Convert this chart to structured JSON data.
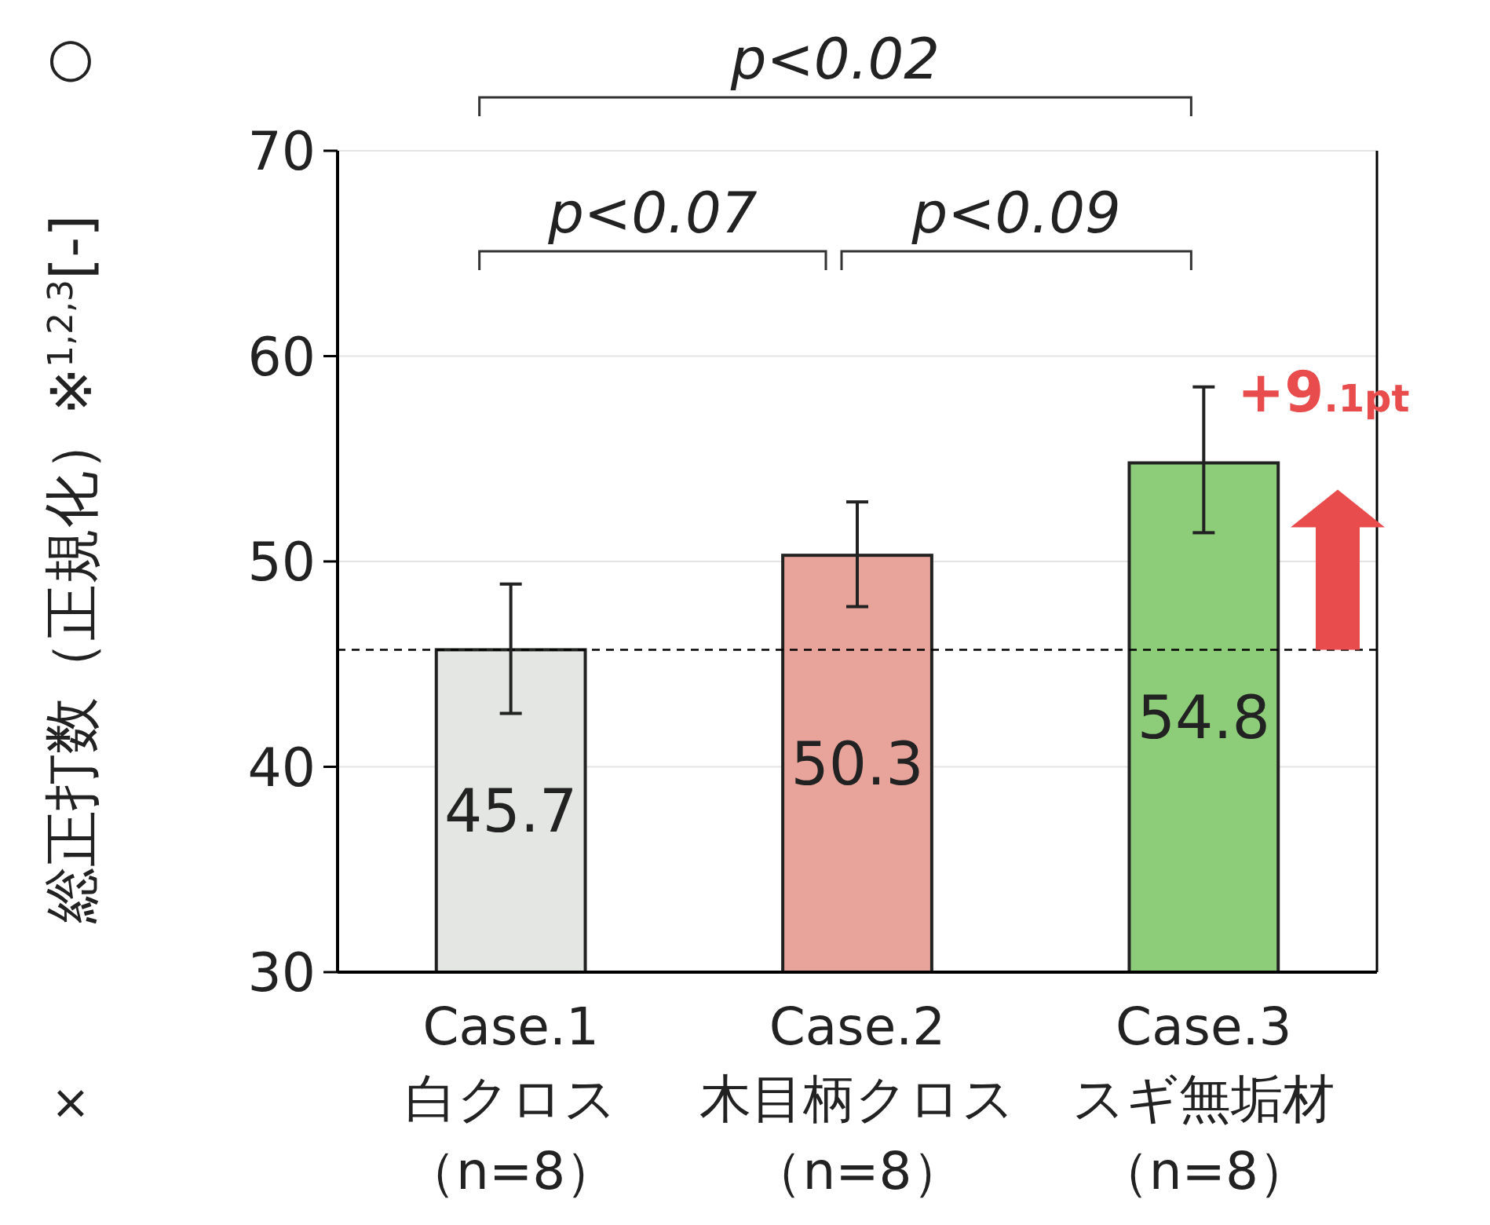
{
  "chart_data": {
    "type": "bar",
    "categories": [
      "Case.1\n白クロス（n=8）",
      "Case.2\n木目柄クロス（n=8）",
      "Case.3\nスギ無垢材（n=8）"
    ],
    "values": [
      45.7,
      50.3,
      54.8
    ],
    "colors": [
      "#e3e6e3",
      "#e8a49a",
      "#8dcc78"
    ],
    "errors": [
      [
        42.6,
        48.9
      ],
      [
        47.8,
        52.9
      ],
      [
        51.4,
        58.5
      ]
    ],
    "ylabel": "総正打数（正規化）※$^{1,2,3}$[-]",
    "ylim": [
      30,
      70
    ],
    "yticks": [
      30,
      40,
      50,
      60,
      70
    ],
    "data_labels": true,
    "grid": "y",
    "ref_lines": [
      {
        "axis": "y",
        "value": 45.7,
        "line_style": "dashed",
        "color": "#000000"
      }
    ],
    "annotations": [
      "p<0.02",
      "p<0.07",
      "p<0.09",
      "+9.1pt",
      "×",
      "○"
    ]
  }
}
